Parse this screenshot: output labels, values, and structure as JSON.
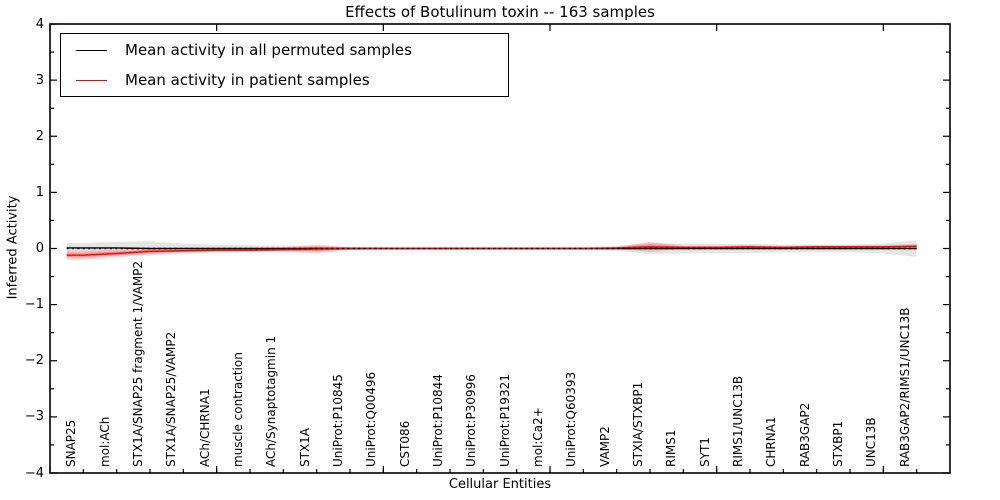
{
  "figure": {
    "title": "Effects of Botulinum toxin -- 163 samples",
    "xlabel": "Cellular Entities",
    "ylabel": "Inferred Activity"
  },
  "legend": {
    "entries": [
      {
        "label": "Mean activity in all permuted samples",
        "color": "#000000"
      },
      {
        "label": "Mean activity in patient samples",
        "color": "#ff0000"
      }
    ]
  },
  "axes": {
    "y_major": [
      4,
      3,
      2,
      1,
      0,
      -1,
      -2,
      -3,
      -4
    ],
    "y_tick_labels": [
      "4",
      "3",
      "2",
      "1",
      "0",
      "−1",
      "−2",
      "−3",
      "−4"
    ],
    "y_minor": [
      3.5,
      2.5,
      1.5,
      0.5,
      -0.5,
      -1.5,
      -2.5,
      -3.5
    ],
    "x_major_numeric": [
      0,
      5,
      10,
      15,
      20,
      25
    ]
  },
  "chart_data": {
    "type": "line",
    "title": "Effects of Botulinum toxin -- 163 samples",
    "xlabel": "Cellular Entities",
    "ylabel": "Inferred Activity",
    "ylim": [
      -4,
      4
    ],
    "grid": false,
    "legend_position": "upper-left",
    "zero_line": {
      "y": 0,
      "style": "dotted",
      "color": "#000000"
    },
    "categories": [
      "SNAP25",
      "mol:ACh",
      "STX1A/SNAP25 fragment 1/VAMP2",
      "STX1A/SNAP25/VAMP2",
      "ACh/CHRNA1",
      "muscle contraction",
      "ACh/Synaptotagmin 1",
      "STX1A",
      "UniProt:P10845",
      "UniProt:Q00496",
      "CST086",
      "UniProt:P10844",
      "UniProt:P30996",
      "UniProt:P19321",
      "mol:Ca2+",
      "UniProt:Q60393",
      "VAMP2",
      "STXIA/STXBP1",
      "RIMS1",
      "SYT1",
      "RIMS1/UNC13B",
      "CHRNA1",
      "RAB3GAP2",
      "STXBP1",
      "UNC13B",
      "RAB3GAP2/RIMS1/UNC13B"
    ],
    "series": [
      {
        "id": "permuted-mean-line",
        "name": "Mean activity in all permuted samples",
        "color": "#000000",
        "values": [
          0.01,
          0.01,
          0.0,
          0.0,
          0.0,
          0.0,
          0.0,
          0.0,
          0.0,
          0.0,
          0.0,
          0.0,
          0.0,
          0.0,
          0.0,
          0.0,
          0.0,
          0.0,
          0.0,
          0.0,
          0.0,
          0.0,
          0.0,
          0.0,
          0.0,
          0.0
        ]
      },
      {
        "id": "patient-mean-line",
        "name": "Mean activity in patient samples",
        "color": "#ff0000",
        "values": [
          -0.12,
          -0.09,
          -0.05,
          -0.04,
          -0.03,
          -0.03,
          -0.02,
          -0.01,
          0.0,
          0.0,
          0.0,
          0.0,
          0.0,
          0.0,
          0.0,
          0.0,
          0.01,
          0.03,
          0.02,
          0.02,
          0.03,
          0.02,
          0.03,
          0.03,
          0.03,
          0.04
        ]
      }
    ],
    "bands": [
      {
        "name": "permuted-std-band",
        "series": 0,
        "color": "#000000",
        "opacity": 0.1,
        "half_widths": [
          0.09,
          0.11,
          0.13,
          0.09,
          0.07,
          0.06,
          0.05,
          0.05,
          0.03,
          0.02,
          0.02,
          0.02,
          0.02,
          0.02,
          0.02,
          0.02,
          0.04,
          0.1,
          0.09,
          0.08,
          0.08,
          0.07,
          0.07,
          0.07,
          0.09,
          0.15
        ]
      },
      {
        "name": "patient-std-band-outer",
        "series": 1,
        "color": "#ff0000",
        "opacity": 0.16,
        "half_widths": [
          0.08,
          0.07,
          0.05,
          0.03,
          0.03,
          0.03,
          0.04,
          0.08,
          0.02,
          0.015,
          0.015,
          0.015,
          0.015,
          0.015,
          0.015,
          0.015,
          0.02,
          0.09,
          0.03,
          0.025,
          0.03,
          0.025,
          0.025,
          0.03,
          0.03,
          0.04
        ]
      },
      {
        "name": "patient-std-band-inner",
        "series": 1,
        "color": "#ff0000",
        "opacity": 0.28,
        "half_widths": [
          0.04,
          0.035,
          0.025,
          0.015,
          0.015,
          0.015,
          0.02,
          0.04,
          0.01,
          0.008,
          0.008,
          0.008,
          0.008,
          0.008,
          0.008,
          0.008,
          0.01,
          0.045,
          0.015,
          0.013,
          0.015,
          0.013,
          0.013,
          0.015,
          0.015,
          0.02
        ]
      }
    ]
  }
}
